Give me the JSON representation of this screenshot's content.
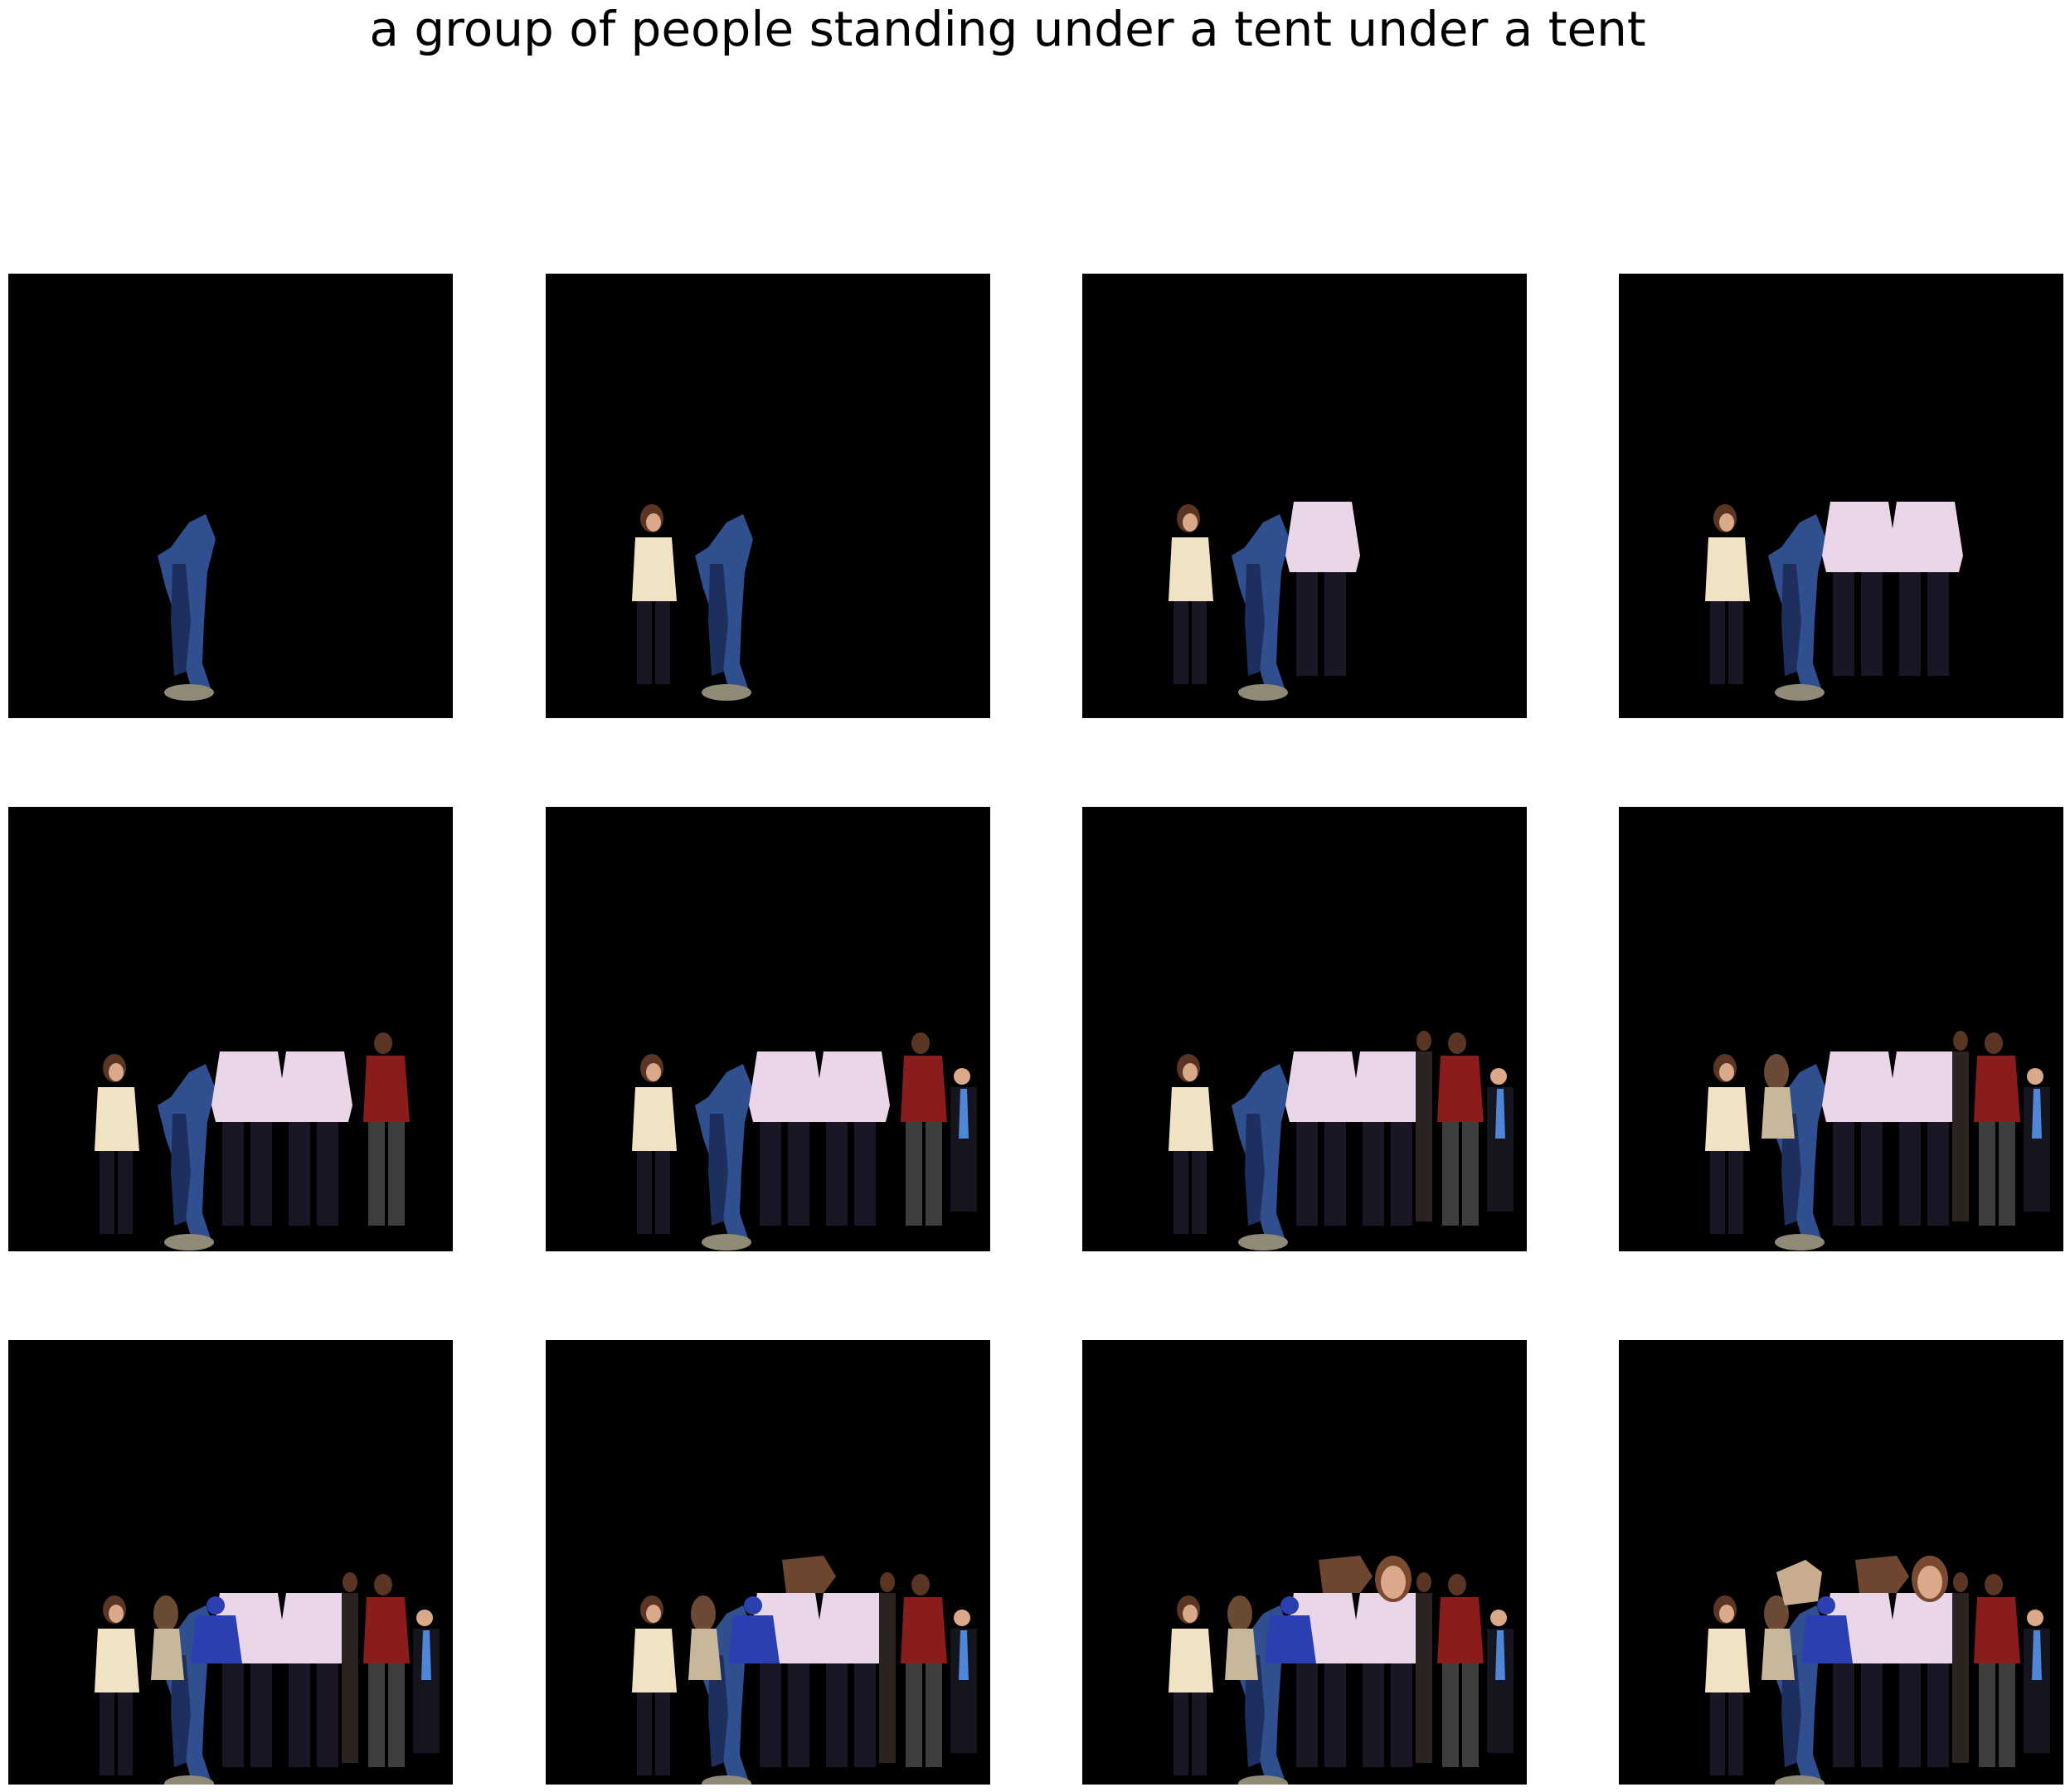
{
  "figure": {
    "caption": "a group of people standing under a tent under a tent",
    "background_color": "#000000",
    "panel_count": 12,
    "rows": 3,
    "columns": 4
  },
  "panels": [
    {
      "step": 1,
      "cutouts": [
        "blue-jeans-figure"
      ]
    },
    {
      "step": 2,
      "cutouts": [
        "woman-cream-top",
        "blue-jeans-figure"
      ]
    },
    {
      "step": 3,
      "cutouts": [
        "woman-cream-top",
        "blue-jeans-figure",
        "pink-sweater-figure"
      ]
    },
    {
      "step": 4,
      "cutouts": [
        "woman-cream-top",
        "blue-jeans-figure",
        "pink-sweater-figure",
        "pink-sweater-figure-2"
      ]
    },
    {
      "step": 5,
      "cutouts": [
        "woman-cream-top",
        "blue-jeans-figure",
        "pink-sweater-figure",
        "pink-sweater-figure-2",
        "red-jacket-man"
      ]
    },
    {
      "step": 6,
      "cutouts": [
        "woman-cream-top",
        "blue-jeans-figure",
        "pink-sweater-figure",
        "pink-sweater-figure-2",
        "red-jacket-man",
        "man-blue-tie"
      ]
    },
    {
      "step": 7,
      "cutouts": [
        "woman-cream-top",
        "blue-jeans-figure",
        "pink-sweater-figure",
        "pink-sweater-figure-2",
        "red-jacket-man",
        "man-blue-tie",
        "dark-standing-figure"
      ]
    },
    {
      "step": 8,
      "cutouts": [
        "woman-cream-top",
        "blue-jeans-figure",
        "pink-sweater-figure",
        "pink-sweater-figure-2",
        "red-jacket-man",
        "man-blue-tie",
        "dark-standing-figure",
        "long-hair-woman"
      ]
    },
    {
      "step": 9,
      "cutouts": [
        "woman-cream-top",
        "blue-jeans-figure",
        "pink-sweater-figure",
        "pink-sweater-figure-2",
        "red-jacket-man",
        "man-blue-tie",
        "dark-standing-figure",
        "long-hair-woman",
        "blue-costume-figure"
      ]
    },
    {
      "step": 10,
      "cutouts": [
        "woman-cream-top",
        "blue-jeans-figure",
        "pink-sweater-figure",
        "pink-sweater-figure-2",
        "red-jacket-man",
        "man-blue-tie",
        "dark-standing-figure",
        "long-hair-woman",
        "blue-costume-figure",
        "brown-object"
      ]
    },
    {
      "step": 11,
      "cutouts": [
        "woman-cream-top",
        "blue-jeans-figure",
        "pink-sweater-figure",
        "pink-sweater-figure-2",
        "red-jacket-man",
        "man-blue-tie",
        "dark-standing-figure",
        "long-hair-woman",
        "blue-costume-figure",
        "brown-object",
        "woman-face"
      ]
    },
    {
      "step": 12,
      "cutouts": [
        "woman-cream-top",
        "blue-jeans-figure",
        "pink-sweater-figure",
        "pink-sweater-figure-2",
        "red-jacket-man",
        "man-blue-tie",
        "dark-standing-figure",
        "long-hair-woman",
        "blue-costume-figure",
        "brown-object",
        "woman-face",
        "beige-object"
      ]
    }
  ],
  "palette": {
    "jeans": "#2f4f8f",
    "jeans_dark": "#1d2f5e",
    "cream_top": "#efe3c4",
    "hair_brown": "#5a3524",
    "dark_pants": "#1a1626",
    "pink_sweater": "#e9d6e8",
    "red_jacket": "#8a1c1c",
    "grey_pants": "#3c3f3b",
    "suit_dark": "#15151f",
    "tie_blue": "#4f86d8",
    "skin": "#d9a98a",
    "blue_costume": "#2b3fb0",
    "brown_object": "#6e4630",
    "beige_object": "#c9ad8e",
    "shoe": "#8f8a78"
  }
}
